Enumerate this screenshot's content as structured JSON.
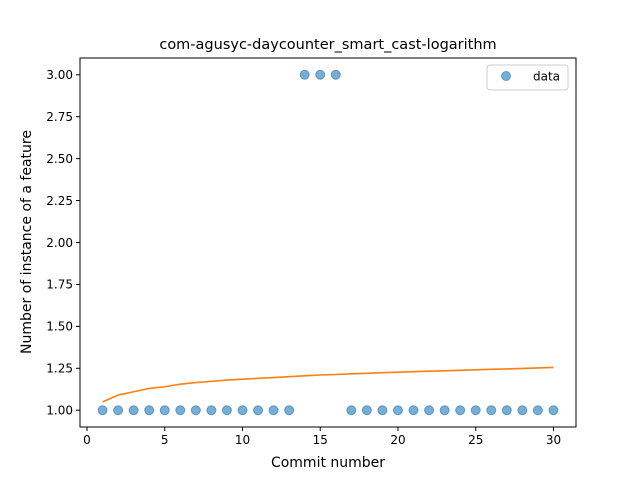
{
  "chart_data": {
    "type": "scatter",
    "title": "com-agusyc-daycounter_smart_cast-logarithm",
    "xlabel": "Commit number",
    "ylabel": "Number of instance of a feature",
    "xlim": [
      -0.45,
      31.45
    ],
    "ylim": [
      0.9,
      3.1
    ],
    "xticks": [
      0,
      5,
      10,
      15,
      20,
      25,
      30
    ],
    "yticks": [
      1.0,
      1.25,
      1.5,
      1.75,
      2.0,
      2.25,
      2.5,
      2.75,
      3.0
    ],
    "xtick_labels": [
      "0",
      "5",
      "10",
      "15",
      "20",
      "25",
      "30"
    ],
    "ytick_labels": [
      "1.00",
      "1.25",
      "1.50",
      "1.75",
      "2.00",
      "2.25",
      "2.50",
      "2.75",
      "3.00"
    ],
    "grid": false,
    "legend_position": "top-right",
    "series": [
      {
        "name": "data",
        "kind": "scatter",
        "color": "#1f77b4",
        "x": [
          1,
          2,
          3,
          4,
          5,
          6,
          7,
          8,
          9,
          10,
          11,
          12,
          13,
          14,
          15,
          16,
          17,
          18,
          19,
          20,
          21,
          22,
          23,
          24,
          25,
          26,
          27,
          28,
          29,
          30
        ],
        "y": [
          1,
          1,
          1,
          1,
          1,
          1,
          1,
          1,
          1,
          1,
          1,
          1,
          1,
          3,
          3,
          3,
          1,
          1,
          1,
          1,
          1,
          1,
          1,
          1,
          1,
          1,
          1,
          1,
          1,
          1
        ]
      },
      {
        "kind": "line",
        "color": "#ff7f0e",
        "x": [
          1,
          2,
          3,
          4,
          5,
          6,
          7,
          8,
          9,
          10,
          11,
          12,
          13,
          14,
          15,
          16,
          17,
          18,
          19,
          20,
          21,
          22,
          23,
          24,
          25,
          26,
          27,
          28,
          29,
          30
        ],
        "y": [
          1.05,
          1.09,
          1.11,
          1.13,
          1.14,
          1.155,
          1.165,
          1.172,
          1.18,
          1.185,
          1.19,
          1.195,
          1.2,
          1.205,
          1.21,
          1.213,
          1.217,
          1.22,
          1.224,
          1.227,
          1.23,
          1.233,
          1.235,
          1.238,
          1.241,
          1.244,
          1.246,
          1.249,
          1.252,
          1.255
        ]
      }
    ]
  }
}
